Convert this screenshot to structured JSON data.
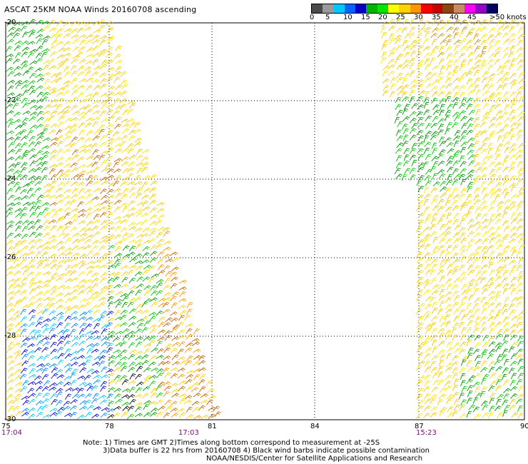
{
  "title": "ASCAT 25KM NOAA Winds 20160708 ascending",
  "colorbar": {
    "colors": [
      "#4a4a4a",
      "#9a9a9a",
      "#00c8ff",
      "#0064ff",
      "#0000c8",
      "#00b400",
      "#00e600",
      "#ffff00",
      "#ffd200",
      "#ff9600",
      "#ff0000",
      "#c80000",
      "#8b4513",
      "#c88c64",
      "#ff00ff",
      "#9600c8",
      "#000064"
    ],
    "labels": [
      "0",
      "5",
      "10",
      "15",
      "20",
      "25",
      "30",
      "35",
      "40",
      "45",
      ">50 knots"
    ]
  },
  "axes": {
    "lat_labels": [
      "-20",
      "-22",
      "-24",
      "-26",
      "-28",
      "-30"
    ],
    "lon_labels": [
      "75",
      "78",
      "81",
      "84",
      "87",
      "90"
    ]
  },
  "times": [
    "17:04",
    "17:03",
    "15:23"
  ],
  "notes": {
    "line1": "Note: 1) Times are GMT 2)Times along bottom correspond to measurement at -25S",
    "line2": "3)Data buffer is 22 hrs from 20160708 4) Black wind barbs indicate possible contamination",
    "line3": "NOAA/NESDIS/Center for Satellite Applications and Research"
  }
}
